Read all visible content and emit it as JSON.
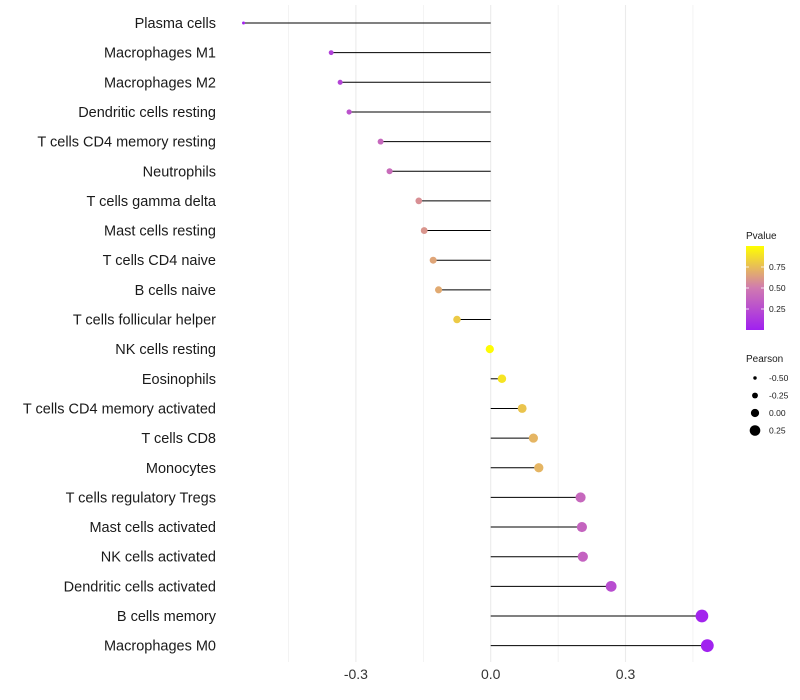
{
  "chart_data": {
    "type": "lollipop",
    "title": "",
    "xlabel": "",
    "ylabel": "",
    "xlim": [
      -0.45,
      0.52
    ],
    "xticks": [
      -0.3,
      0.0,
      0.3
    ],
    "xtick_labels": [
      "-0.3",
      "0.0",
      "0.3"
    ],
    "grid": true,
    "categories": [
      "Plasma cells",
      "Macrophages M1",
      "Macrophages M2",
      "Dendritic cells resting",
      "T cells CD4 memory resting",
      "Neutrophils",
      "T cells gamma delta",
      "Mast cells resting",
      "T cells CD4 naive",
      "B cells naive",
      "T cells follicular helper",
      "NK cells resting",
      "Eosinophils",
      "T cells CD4 memory activated",
      "T cells CD8",
      "Monocytes",
      "T cells regulatory  Tregs ",
      "Mast cells activated",
      "NK cells activated",
      "Dendritic cells activated",
      "B cells memory",
      "Macrophages M0"
    ],
    "pearson": [
      -0.55,
      -0.355,
      -0.335,
      -0.315,
      -0.245,
      -0.225,
      -0.16,
      -0.148,
      -0.128,
      -0.116,
      -0.075,
      -0.002,
      0.025,
      0.07,
      0.095,
      0.107,
      0.2,
      0.203,
      0.205,
      0.268,
      0.47,
      0.482
    ],
    "pvalue": [
      0.02,
      0.18,
      0.2,
      0.28,
      0.4,
      0.42,
      0.58,
      0.6,
      0.66,
      0.68,
      0.8,
      0.99,
      0.9,
      0.78,
      0.72,
      0.72,
      0.4,
      0.38,
      0.37,
      0.25,
      0.02,
      0.01
    ],
    "color_legend": {
      "title": "Pvalue",
      "ticks": [
        0.25,
        0.5,
        0.75
      ],
      "tick_labels": [
        "0.25",
        "0.50",
        "0.75"
      ],
      "range": [
        0.0,
        1.0
      ],
      "low_color": "#a020f0",
      "mid_color": "#d07ab0",
      "high_color": "#ffff00"
    },
    "size_legend": {
      "title": "Pearson",
      "values": [
        -0.5,
        -0.25,
        0.0,
        0.25
      ],
      "labels": [
        "-0.50",
        "-0.25",
        "0.00",
        "0.25"
      ]
    }
  },
  "colors": {
    "stem": "#000000",
    "grid": "#ebebeb",
    "background": "#ffffff"
  }
}
